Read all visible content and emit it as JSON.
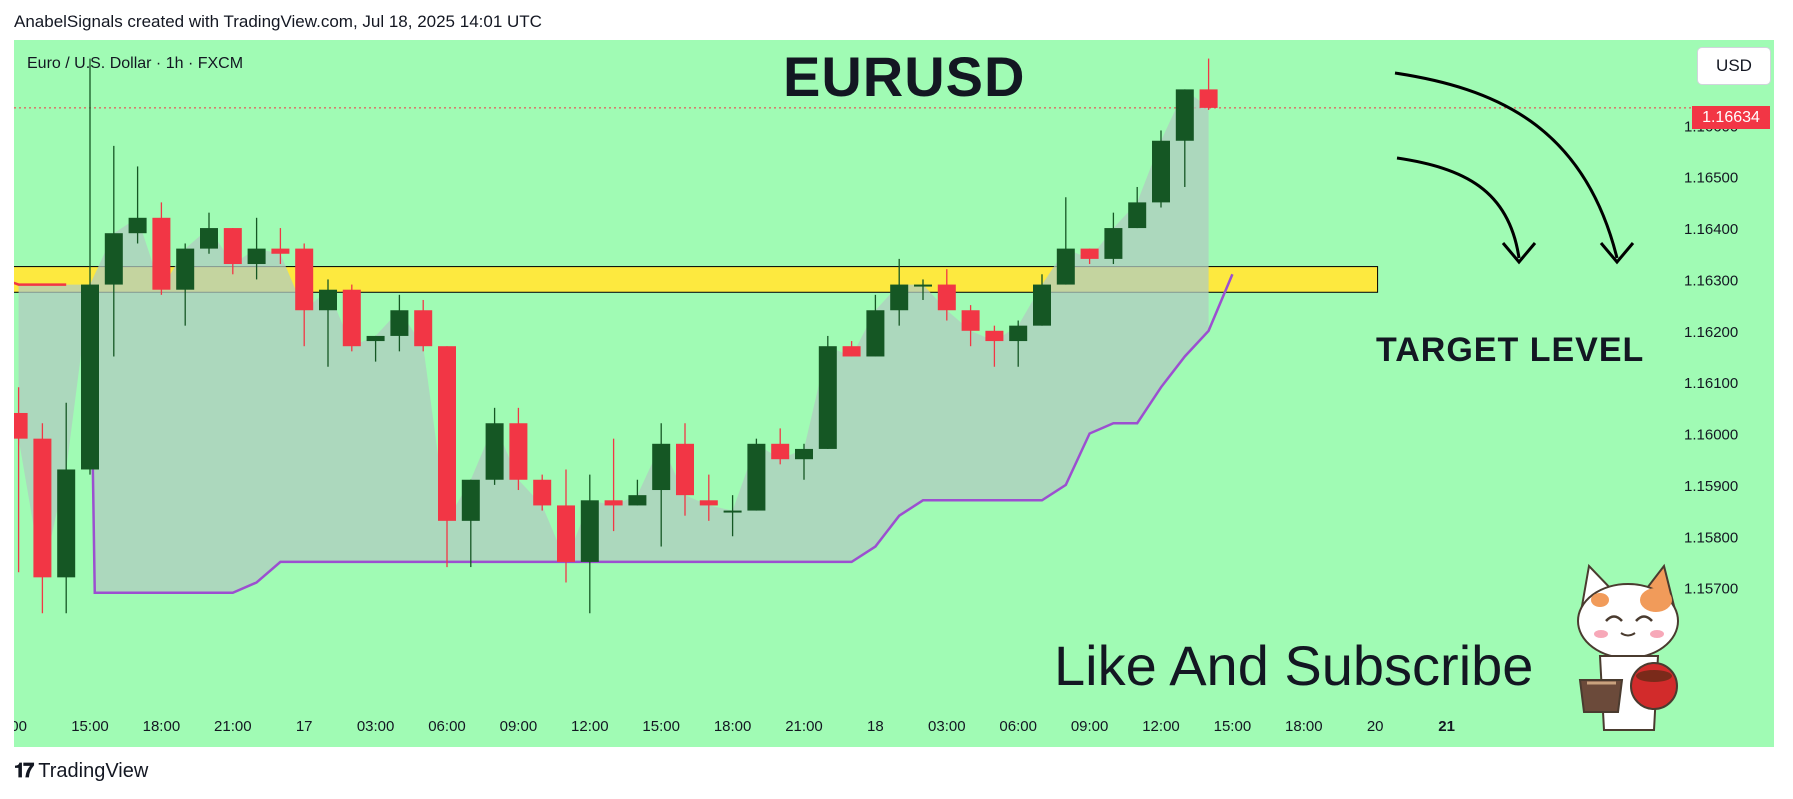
{
  "header": {
    "attribution": "AnabelSignals created with TradingView.com, Jul 18, 2025 14:01 UTC"
  },
  "chart_info": {
    "symbol_line": "Euro / U.S. Dollar · 1h · FXCM",
    "currency_button": "USD"
  },
  "annotations": {
    "title": "EURUSD",
    "target_label": "TARGET LEVEL",
    "cta": "Like And Subscribe"
  },
  "footer": {
    "brand": "TradingView"
  },
  "colors": {
    "background": "#a0fbb4",
    "bull": "#155724",
    "bear": "#f23645",
    "zone_fill": "#fde93f",
    "trail_line": "#9c4fd0",
    "shade": "#b0ccc0",
    "last_price": "#f23645"
  },
  "chart_data": {
    "type": "candlestick",
    "title": "EURUSD",
    "ylim": [
      1.15635,
      1.16735
    ],
    "y_ticks": [
      "1.16600",
      "1.16500",
      "1.16400",
      "1.16300",
      "1.16200",
      "1.16100",
      "1.16000",
      "1.15900",
      "1.15800",
      "1.15700"
    ],
    "x_ticks": [
      {
        "label": "00",
        "bar": -3
      },
      {
        "label": "15:00",
        "bar": 0
      },
      {
        "label": "18:00",
        "bar": 3
      },
      {
        "label": "21:00",
        "bar": 6
      },
      {
        "label": "17",
        "bar": 9
      },
      {
        "label": "03:00",
        "bar": 12
      },
      {
        "label": "06:00",
        "bar": 15
      },
      {
        "label": "09:00",
        "bar": 18
      },
      {
        "label": "12:00",
        "bar": 21
      },
      {
        "label": "15:00",
        "bar": 24
      },
      {
        "label": "18:00",
        "bar": 27
      },
      {
        "label": "21:00",
        "bar": 30
      },
      {
        "label": "18",
        "bar": 33
      },
      {
        "label": "03:00",
        "bar": 36
      },
      {
        "label": "06:00",
        "bar": 39
      },
      {
        "label": "09:00",
        "bar": 42
      },
      {
        "label": "12:00",
        "bar": 45
      },
      {
        "label": "15:00",
        "bar": 48
      },
      {
        "label": "18:00",
        "bar": 51
      },
      {
        "label": "20",
        "bar": 54
      },
      {
        "label": "21",
        "bar": 57
      }
    ],
    "candles": [
      {
        "bar": -3,
        "open": 1.1604,
        "high": 1.1609,
        "low": 1.1573,
        "close": 1.1599
      },
      {
        "bar": -2,
        "open": 1.1599,
        "high": 1.1602,
        "low": 1.1565,
        "close": 1.1572
      },
      {
        "bar": -1,
        "open": 1.1572,
        "high": 1.1606,
        "low": 1.1565,
        "close": 1.1593
      },
      {
        "bar": 0,
        "open": 1.1593,
        "high": 1.1673,
        "low": 1.1592,
        "close": 1.1629
      },
      {
        "bar": 1,
        "open": 1.1629,
        "high": 1.1656,
        "low": 1.1615,
        "close": 1.1639
      },
      {
        "bar": 2,
        "open": 1.1639,
        "high": 1.1652,
        "low": 1.1637,
        "close": 1.1642
      },
      {
        "bar": 3,
        "open": 1.1642,
        "high": 1.1645,
        "low": 1.1627,
        "close": 1.1628
      },
      {
        "bar": 4,
        "open": 1.1628,
        "high": 1.1637,
        "low": 1.1621,
        "close": 1.1636
      },
      {
        "bar": 5,
        "open": 1.1636,
        "high": 1.1643,
        "low": 1.1635,
        "close": 1.164
      },
      {
        "bar": 6,
        "open": 1.164,
        "high": 1.164,
        "low": 1.1631,
        "close": 1.1633
      },
      {
        "bar": 7,
        "open": 1.1633,
        "high": 1.1642,
        "low": 1.163,
        "close": 1.1636
      },
      {
        "bar": 8,
        "open": 1.1636,
        "high": 1.164,
        "low": 1.1633,
        "close": 1.1635
      },
      {
        "bar": 9,
        "open": 1.1636,
        "high": 1.1637,
        "low": 1.1617,
        "close": 1.1624
      },
      {
        "bar": 10,
        "open": 1.1624,
        "high": 1.163,
        "low": 1.1613,
        "close": 1.1628
      },
      {
        "bar": 11,
        "open": 1.1628,
        "high": 1.1629,
        "low": 1.1616,
        "close": 1.1617
      },
      {
        "bar": 12,
        "open": 1.1618,
        "high": 1.1619,
        "low": 1.1614,
        "close": 1.1619
      },
      {
        "bar": 13,
        "open": 1.1619,
        "high": 1.1627,
        "low": 1.1616,
        "close": 1.1624
      },
      {
        "bar": 14,
        "open": 1.1624,
        "high": 1.1626,
        "low": 1.1616,
        "close": 1.1617
      },
      {
        "bar": 15,
        "open": 1.1617,
        "high": 1.1617,
        "low": 1.1574,
        "close": 1.1583
      },
      {
        "bar": 16,
        "open": 1.1583,
        "high": 1.1591,
        "low": 1.1574,
        "close": 1.1591
      },
      {
        "bar": 17,
        "open": 1.1591,
        "high": 1.1605,
        "low": 1.159,
        "close": 1.1602
      },
      {
        "bar": 18,
        "open": 1.1602,
        "high": 1.1605,
        "low": 1.1589,
        "close": 1.1591
      },
      {
        "bar": 19,
        "open": 1.1591,
        "high": 1.1592,
        "low": 1.1585,
        "close": 1.1586
      },
      {
        "bar": 20,
        "open": 1.1586,
        "high": 1.1593,
        "low": 1.1571,
        "close": 1.1575
      },
      {
        "bar": 21,
        "open": 1.1575,
        "high": 1.1592,
        "low": 1.1565,
        "close": 1.1587
      },
      {
        "bar": 22,
        "open": 1.1587,
        "high": 1.1599,
        "low": 1.1581,
        "close": 1.1586
      },
      {
        "bar": 23,
        "open": 1.1586,
        "high": 1.1591,
        "low": 1.1586,
        "close": 1.1588
      },
      {
        "bar": 24,
        "open": 1.1589,
        "high": 1.1602,
        "low": 1.1578,
        "close": 1.1598
      },
      {
        "bar": 25,
        "open": 1.1598,
        "high": 1.1602,
        "low": 1.1584,
        "close": 1.1588
      },
      {
        "bar": 26,
        "open": 1.1587,
        "high": 1.1592,
        "low": 1.1583,
        "close": 1.1586
      },
      {
        "bar": 27,
        "open": 1.1585,
        "high": 1.1588,
        "low": 1.158,
        "close": 1.1585
      },
      {
        "bar": 28,
        "open": 1.1585,
        "high": 1.1599,
        "low": 1.1585,
        "close": 1.1598
      },
      {
        "bar": 29,
        "open": 1.1598,
        "high": 1.1601,
        "low": 1.1594,
        "close": 1.1595
      },
      {
        "bar": 30,
        "open": 1.1595,
        "high": 1.1598,
        "low": 1.1591,
        "close": 1.1597
      },
      {
        "bar": 31,
        "open": 1.1597,
        "high": 1.1619,
        "low": 1.1597,
        "close": 1.1617
      },
      {
        "bar": 32,
        "open": 1.1617,
        "high": 1.1618,
        "low": 1.1615,
        "close": 1.1615
      },
      {
        "bar": 33,
        "open": 1.1615,
        "high": 1.1627,
        "low": 1.1615,
        "close": 1.1624
      },
      {
        "bar": 34,
        "open": 1.1624,
        "high": 1.1634,
        "low": 1.1621,
        "close": 1.1629
      },
      {
        "bar": 35,
        "open": 1.1629,
        "high": 1.163,
        "low": 1.1626,
        "close": 1.1629
      },
      {
        "bar": 36,
        "open": 1.1629,
        "high": 1.1632,
        "low": 1.1622,
        "close": 1.1624
      },
      {
        "bar": 37,
        "open": 1.1624,
        "high": 1.1625,
        "low": 1.1617,
        "close": 1.162
      },
      {
        "bar": 38,
        "open": 1.162,
        "high": 1.1621,
        "low": 1.1613,
        "close": 1.1618
      },
      {
        "bar": 39,
        "open": 1.1618,
        "high": 1.1622,
        "low": 1.1613,
        "close": 1.1621
      },
      {
        "bar": 40,
        "open": 1.1621,
        "high": 1.1631,
        "low": 1.1621,
        "close": 1.1629
      },
      {
        "bar": 41,
        "open": 1.1629,
        "high": 1.1646,
        "low": 1.1629,
        "close": 1.1636
      },
      {
        "bar": 42,
        "open": 1.1636,
        "high": 1.1636,
        "low": 1.1633,
        "close": 1.1634
      },
      {
        "bar": 43,
        "open": 1.1634,
        "high": 1.1643,
        "low": 1.1633,
        "close": 1.164
      },
      {
        "bar": 44,
        "open": 1.164,
        "high": 1.1648,
        "low": 1.164,
        "close": 1.1645
      },
      {
        "bar": 45,
        "open": 1.1645,
        "high": 1.1659,
        "low": 1.1644,
        "close": 1.1657
      },
      {
        "bar": 46,
        "open": 1.1657,
        "high": 1.1667,
        "low": 1.1648,
        "close": 1.1667
      },
      {
        "bar": 47,
        "open": 1.1667,
        "high": 1.1673,
        "low": 1.1663,
        "close": 1.16634
      }
    ],
    "trailing_line": [
      {
        "bar": -4,
        "value": 1.1637
      },
      {
        "bar": -3.6,
        "value": 1.163
      },
      {
        "bar": -3,
        "value": 1.1629
      },
      {
        "bar": -1,
        "value": 1.1629
      },
      {
        "bar": 0,
        "value": 1.1629
      },
      {
        "bar": 0.2,
        "value": 1.1569
      },
      {
        "bar": 5,
        "value": 1.1569
      },
      {
        "bar": 6,
        "value": 1.1569
      },
      {
        "bar": 7,
        "value": 1.1571
      },
      {
        "bar": 8,
        "value": 1.1575
      },
      {
        "bar": 32,
        "value": 1.1575
      },
      {
        "bar": 33,
        "value": 1.1578
      },
      {
        "bar": 34,
        "value": 1.1584
      },
      {
        "bar": 35,
        "value": 1.1587
      },
      {
        "bar": 36,
        "value": 1.1587
      },
      {
        "bar": 40,
        "value": 1.1587
      },
      {
        "bar": 41,
        "value": 1.159
      },
      {
        "bar": 42,
        "value": 1.16
      },
      {
        "bar": 43,
        "value": 1.1602
      },
      {
        "bar": 44,
        "value": 1.1602
      },
      {
        "bar": 45,
        "value": 1.1609
      },
      {
        "bar": 46,
        "value": 1.1615
      },
      {
        "bar": 47,
        "value": 1.162
      },
      {
        "bar": 48,
        "value": 1.1631
      }
    ],
    "target_zone": {
      "from_bar": -3.7,
      "to_bar": 54.1,
      "low": 1.16275,
      "high": 1.16325,
      "label": "TARGET LEVEL"
    },
    "last_price": {
      "value": 1.16634,
      "label": "1.16634"
    },
    "grid": false,
    "legend": false
  }
}
